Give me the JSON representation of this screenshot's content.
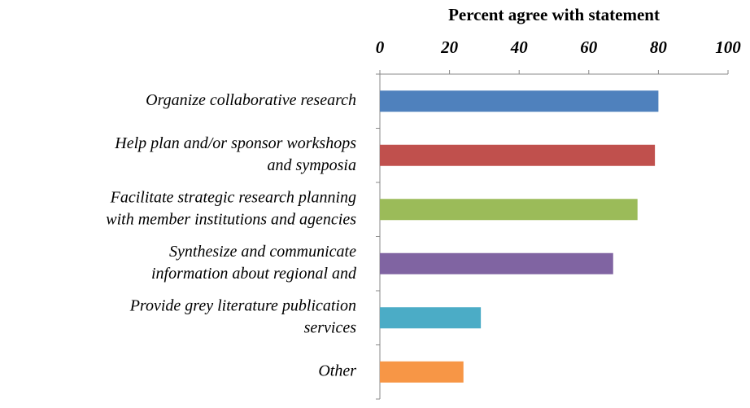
{
  "chart_data": {
    "type": "hbar",
    "title": "Percent agree with statement",
    "categories": [
      [
        "Organize collaborative research"
      ],
      [
        "Help plan and/or sponsor workshops",
        "and symposia"
      ],
      [
        "Facilitate strategic research planning",
        "with member institutions and agencies"
      ],
      [
        "Synthesize and communicate",
        "information about regional and"
      ],
      [
        "Provide grey literature publication",
        "services"
      ],
      [
        "Other"
      ]
    ],
    "values": [
      80,
      79,
      74,
      67,
      29,
      24
    ],
    "colors": [
      "#4f81bd",
      "#c0504d",
      "#9bbb59",
      "#8064a2",
      "#4bacc6",
      "#f79646"
    ],
    "xlim": [
      0,
      100
    ],
    "xticks": [
      0,
      20,
      40,
      60,
      80,
      100
    ]
  }
}
